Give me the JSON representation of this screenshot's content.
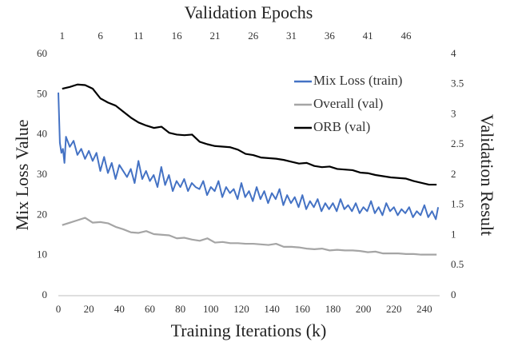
{
  "chart_data": {
    "type": "line",
    "x2label": "Validation Epochs",
    "xlabel": "Training Iterations (k)",
    "ylabel": "Mix Loss Value",
    "y2label": "Validation Result",
    "xlim": [
      0,
      250
    ],
    "xticks": [
      0,
      20,
      40,
      60,
      80,
      100,
      120,
      140,
      160,
      180,
      200,
      220,
      240
    ],
    "x2lim": [
      0.5,
      50.4
    ],
    "x2ticks": [
      1,
      6,
      11,
      16,
      21,
      26,
      31,
      36,
      41,
      46
    ],
    "ylim": [
      0,
      60
    ],
    "yticks": [
      0,
      10,
      20,
      30,
      40,
      50,
      60
    ],
    "y2lim": [
      0,
      4
    ],
    "y2ticks": [
      0,
      0.5,
      1,
      1.5,
      2,
      2.5,
      3,
      3.5,
      4
    ],
    "legend": "upper right",
    "series": [
      {
        "name": "Mix Loss (train)",
        "color": "#4472c4",
        "x": [
          0,
          1,
          2,
          3,
          4,
          5,
          7.5,
          10,
          12.5,
          15,
          17.5,
          20,
          22.5,
          25,
          27.5,
          30,
          32.5,
          35,
          37.5,
          40,
          42.5,
          45,
          47.5,
          50,
          52.5,
          55,
          57.5,
          60,
          62.5,
          65,
          67.5,
          70,
          72.5,
          75,
          77.5,
          80,
          82.5,
          85,
          87.5,
          90,
          92.5,
          95,
          97.5,
          100,
          102.5,
          105,
          107.5,
          110,
          112.5,
          115,
          117.5,
          120,
          122.5,
          125,
          127.5,
          130,
          132.5,
          135,
          137.5,
          140,
          142.5,
          145,
          147.5,
          150,
          152.5,
          155,
          157.5,
          160,
          162.5,
          165,
          167.5,
          170,
          172.5,
          175,
          177.5,
          180,
          182.5,
          185,
          187.5,
          190,
          192.5,
          195,
          197.5,
          200,
          202.5,
          205,
          207.5,
          210,
          212.5,
          215,
          217.5,
          220,
          222.5,
          225,
          227.5,
          230,
          232.5,
          235,
          237.5,
          240,
          242.5,
          245,
          247.5,
          249
        ],
        "values": [
          50.5,
          38,
          35.5,
          36.5,
          33,
          39.5,
          37,
          38.5,
          35,
          36.5,
          34,
          36,
          33.5,
          35.5,
          31,
          34.5,
          30.5,
          33,
          29,
          32.5,
          31,
          29.5,
          31.5,
          28,
          33.5,
          29,
          31,
          28.5,
          30,
          27,
          32,
          27.5,
          30,
          26,
          28.5,
          27,
          29,
          26,
          28,
          27,
          26.5,
          28.5,
          25,
          27,
          26,
          28.5,
          24.5,
          27,
          25.5,
          26.5,
          24,
          28,
          24.5,
          26,
          23.5,
          27,
          24,
          26,
          23,
          25.5,
          24,
          26.5,
          22.5,
          25,
          23,
          24.5,
          22,
          25,
          21.5,
          23.5,
          22,
          24,
          21,
          23,
          21.5,
          23,
          21,
          24,
          21.5,
          22.5,
          21,
          23,
          20.5,
          22,
          21,
          23.5,
          20.5,
          22,
          20,
          23,
          21,
          22,
          20,
          21.5,
          20.5,
          22,
          19.5,
          21,
          20,
          22.5,
          19.5,
          21,
          19,
          22
        ]
      },
      {
        "name": "Overall (val)",
        "color": "#a5a5a5",
        "axis": "y2",
        "xaxis": "x2",
        "x": [
          1,
          2,
          3,
          4,
          5,
          6,
          7,
          8,
          9,
          10,
          11,
          12,
          13,
          14,
          15,
          16,
          17,
          18,
          19,
          20,
          21,
          22,
          23,
          24,
          25,
          26,
          27,
          28,
          29,
          30,
          31,
          32,
          33,
          34,
          35,
          36,
          37,
          38,
          39,
          40,
          41,
          42,
          43,
          44,
          45,
          46,
          47,
          48,
          49,
          50
        ],
        "values": [
          1.17,
          1.21,
          1.25,
          1.29,
          1.21,
          1.22,
          1.2,
          1.14,
          1.1,
          1.05,
          1.04,
          1.07,
          1.02,
          1.01,
          1.0,
          0.95,
          0.96,
          0.93,
          0.91,
          0.95,
          0.88,
          0.89,
          0.87,
          0.87,
          0.86,
          0.86,
          0.85,
          0.84,
          0.86,
          0.81,
          0.81,
          0.8,
          0.78,
          0.77,
          0.78,
          0.75,
          0.76,
          0.75,
          0.75,
          0.74,
          0.72,
          0.73,
          0.7,
          0.7,
          0.7,
          0.69,
          0.69,
          0.68,
          0.68,
          0.68
        ]
      },
      {
        "name": "ORB (val)",
        "color": "#000000",
        "axis": "y2",
        "xaxis": "x2",
        "x": [
          1,
          2,
          3,
          4,
          5,
          6,
          7,
          8,
          9,
          10,
          11,
          12,
          13,
          14,
          15,
          16,
          17,
          18,
          19,
          20,
          21,
          22,
          23,
          24,
          25,
          26,
          27,
          28,
          29,
          30,
          31,
          32,
          33,
          34,
          35,
          36,
          37,
          38,
          39,
          40,
          41,
          42,
          43,
          44,
          45,
          46,
          47,
          48,
          49,
          50
        ],
        "values": [
          3.43,
          3.46,
          3.5,
          3.49,
          3.43,
          3.27,
          3.2,
          3.15,
          3.05,
          2.95,
          2.87,
          2.82,
          2.78,
          2.8,
          2.7,
          2.67,
          2.66,
          2.67,
          2.55,
          2.51,
          2.48,
          2.47,
          2.46,
          2.42,
          2.35,
          2.33,
          2.29,
          2.28,
          2.27,
          2.25,
          2.22,
          2.19,
          2.2,
          2.15,
          2.13,
          2.14,
          2.1,
          2.09,
          2.08,
          2.04,
          2.03,
          2.0,
          1.98,
          1.96,
          1.95,
          1.94,
          1.9,
          1.87,
          1.84,
          1.84
        ]
      }
    ]
  }
}
